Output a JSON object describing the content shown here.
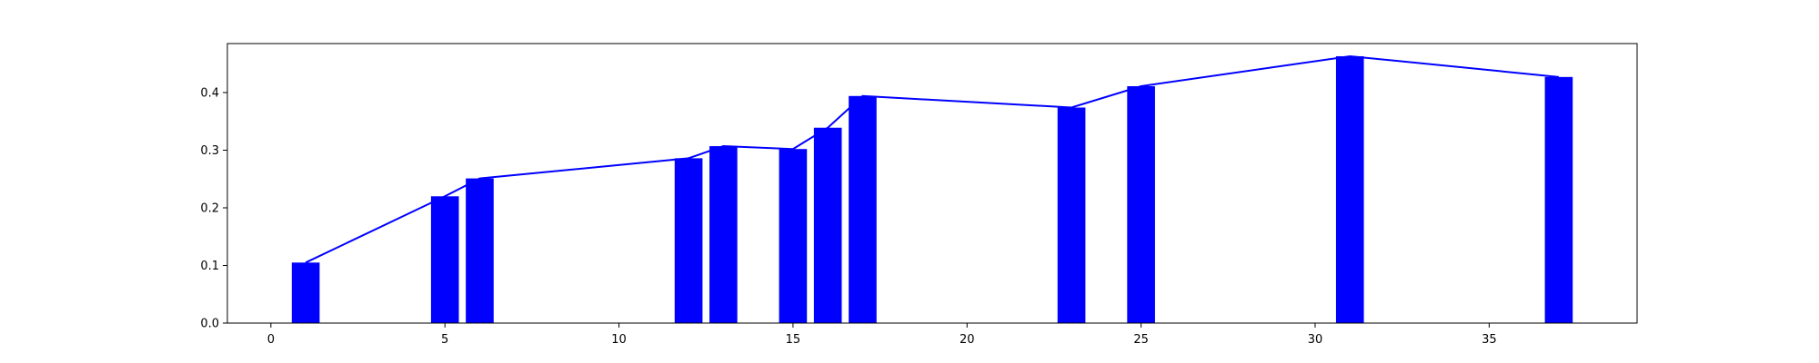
{
  "chart_data": {
    "type": "bar",
    "title": "",
    "xlabel": "",
    "ylabel": "",
    "xlim": [
      -1.25,
      39.25
    ],
    "ylim": [
      0,
      0.485
    ],
    "x_ticks": [
      0,
      5,
      10,
      15,
      20,
      25,
      30,
      35
    ],
    "y_ticks": [
      0.0,
      0.1,
      0.2,
      0.3,
      0.4
    ],
    "x_tick_labels": [
      "0",
      "5",
      "10",
      "15",
      "20",
      "25",
      "30",
      "35"
    ],
    "y_tick_labels": [
      "0.0",
      "0.1",
      "0.2",
      "0.3",
      "0.4"
    ],
    "bar_width": 0.8,
    "grid": false,
    "series": [
      {
        "type": "bar",
        "color": "#0000ff",
        "x": [
          1,
          5,
          6,
          12,
          13,
          15,
          16,
          17,
          23,
          25,
          31,
          37
        ],
        "values": [
          0.105,
          0.22,
          0.251,
          0.286,
          0.307,
          0.302,
          0.339,
          0.394,
          0.374,
          0.411,
          0.463,
          0.427
        ]
      },
      {
        "type": "line",
        "color": "#0000ff",
        "x": [
          1,
          5,
          6,
          12,
          13,
          15,
          16,
          17,
          23,
          25,
          31,
          37
        ],
        "values": [
          0.105,
          0.22,
          0.251,
          0.286,
          0.307,
          0.302,
          0.339,
          0.394,
          0.374,
          0.411,
          0.463,
          0.427
        ]
      }
    ]
  }
}
